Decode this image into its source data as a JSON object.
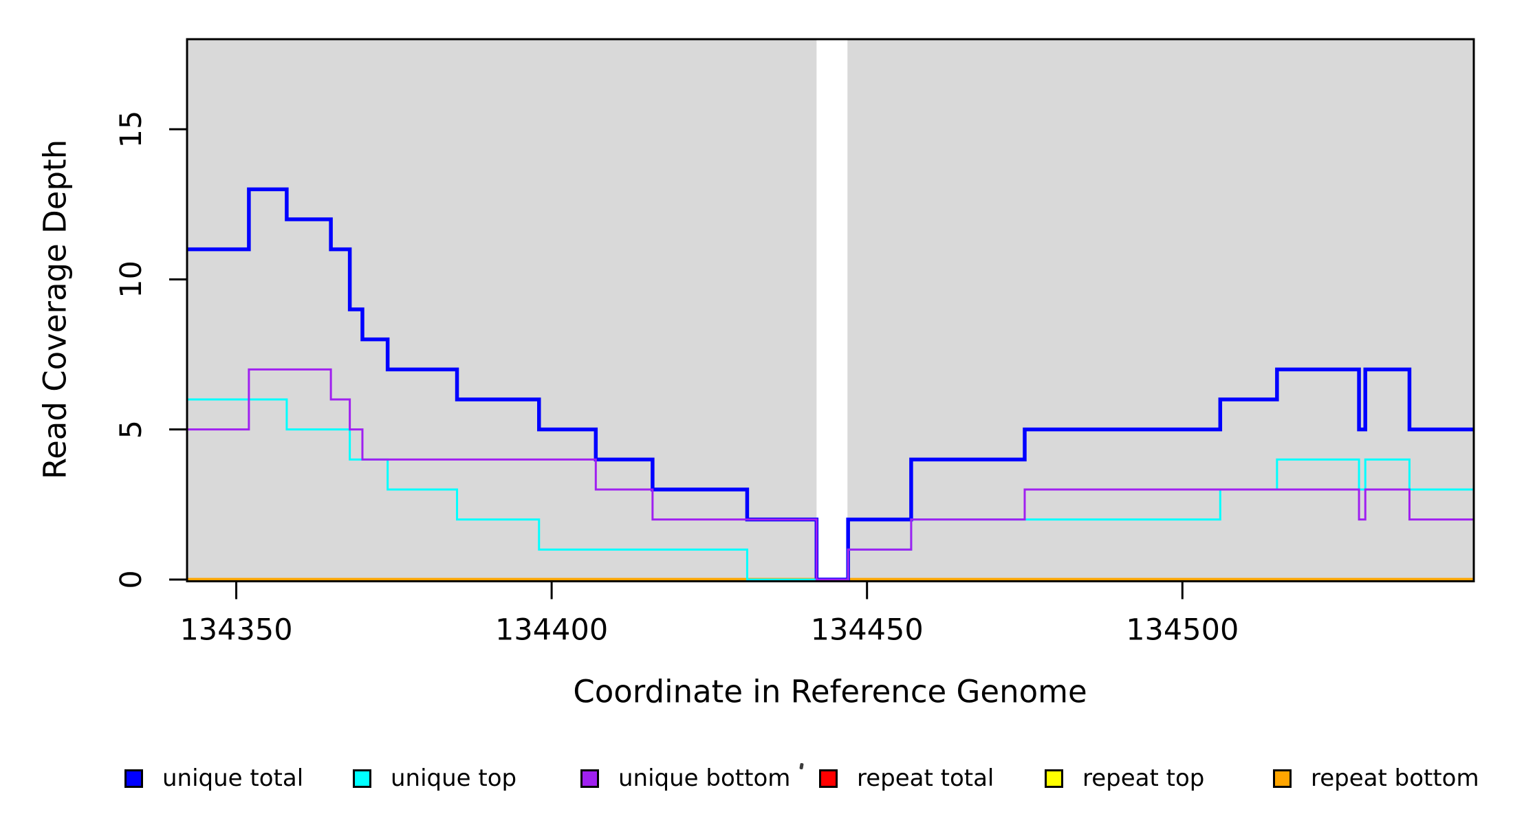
{
  "chart_data": {
    "type": "line",
    "subtype": "step",
    "title": "",
    "xlabel": "Coordinate in Reference Genome",
    "ylabel": "Read Coverage Depth",
    "xlim": [
      134342.2,
      134546.2
    ],
    "ylim": [
      0,
      18
    ],
    "x_ticks": [
      134350,
      134400,
      134450,
      134500
    ],
    "y_ticks": [
      0,
      5,
      10,
      15
    ],
    "grid": false,
    "legend_position": "bottom",
    "plot_bg": "#d9d9d9",
    "coverage_gap_x": [
      134442,
      134446.9
    ],
    "series": [
      {
        "name": "repeat total",
        "color": "#ff0000",
        "width": 4.5,
        "segments": [
          {
            "points": [
              [
                134342.2,
                0
              ]
            ],
            "xend": 134442
          },
          {
            "points": [
              [
                134446.9,
                0
              ]
            ],
            "xend": 134546.2
          }
        ]
      },
      {
        "name": "repeat top",
        "color": "#ffff00",
        "width": 4.5,
        "segments": [
          {
            "points": [
              [
                134342.2,
                0
              ]
            ],
            "xend": 134442
          },
          {
            "points": [
              [
                134446.9,
                0
              ]
            ],
            "xend": 134546.2
          }
        ]
      },
      {
        "name": "repeat bottom",
        "color": "#ffa500",
        "width": 4.5,
        "segments": [
          {
            "points": [
              [
                134342.2,
                0
              ]
            ],
            "xend": 134442
          },
          {
            "points": [
              [
                134446.9,
                0
              ]
            ],
            "xend": 134546.2
          }
        ]
      },
      {
        "name": "unique total",
        "color": "#0000ff",
        "width": 5.5,
        "segments": [
          {
            "points": [
              [
                134342.2,
                11
              ],
              [
                134352,
                13
              ],
              [
                134358,
                12
              ],
              [
                134365,
                11
              ],
              [
                134368,
                9
              ],
              [
                134370,
                8
              ],
              [
                134374,
                7
              ],
              [
                134385,
                6
              ],
              [
                134398,
                5
              ],
              [
                134407,
                4
              ],
              [
                134416,
                3
              ],
              [
                134431,
                2
              ],
              [
                134442,
                0
              ],
              [
                134447,
                2
              ],
              [
                134457,
                4
              ],
              [
                134475,
                5
              ],
              [
                134506,
                6
              ],
              [
                134515,
                7
              ],
              [
                134528,
                5
              ],
              [
                134529,
                7
              ],
              [
                134536,
                5
              ]
            ],
            "xend": 134546.2
          }
        ]
      },
      {
        "name": "unique top",
        "color": "#00ffff",
        "width": 3,
        "segments": [
          {
            "points": [
              [
                134342.2,
                6
              ],
              [
                134358,
                5
              ],
              [
                134368,
                4
              ],
              [
                134374,
                3
              ],
              [
                134385,
                2
              ],
              [
                134398,
                1
              ],
              [
                134431,
                0
              ],
              [
                134447,
                1
              ],
              [
                134457,
                2
              ],
              [
                134506,
                3
              ],
              [
                134515,
                4
              ],
              [
                134528,
                3
              ],
              [
                134529,
                4
              ],
              [
                134536,
                3
              ]
            ],
            "xend": 134546.2
          }
        ]
      },
      {
        "name": "unique bottom",
        "color": "#a020f0",
        "width": 3,
        "segments": [
          {
            "points": [
              [
                134342.2,
                5
              ],
              [
                134352,
                7
              ],
              [
                134365,
                6
              ],
              [
                134368,
                5
              ],
              [
                134370,
                4
              ],
              [
                134407,
                3
              ],
              [
                134416,
                2
              ],
              [
                134442,
                0
              ],
              [
                134447,
                1
              ],
              [
                134457,
                2
              ],
              [
                134475,
                3
              ],
              [
                134528,
                2
              ],
              [
                134529,
                3
              ],
              [
                134536,
                2
              ]
            ],
            "xend": 134546.2
          }
        ]
      }
    ],
    "legend": [
      {
        "label": "unique total",
        "color": "#0000ff"
      },
      {
        "label": "unique top",
        "color": "#00ffff"
      },
      {
        "label": "unique bottom",
        "color": "#a020f0"
      },
      {
        "label": "repeat total",
        "color": "#ff0000"
      },
      {
        "label": "repeat top",
        "color": "#ffff00"
      },
      {
        "label": "repeat bottom",
        "color": "#ffa500"
      }
    ]
  }
}
